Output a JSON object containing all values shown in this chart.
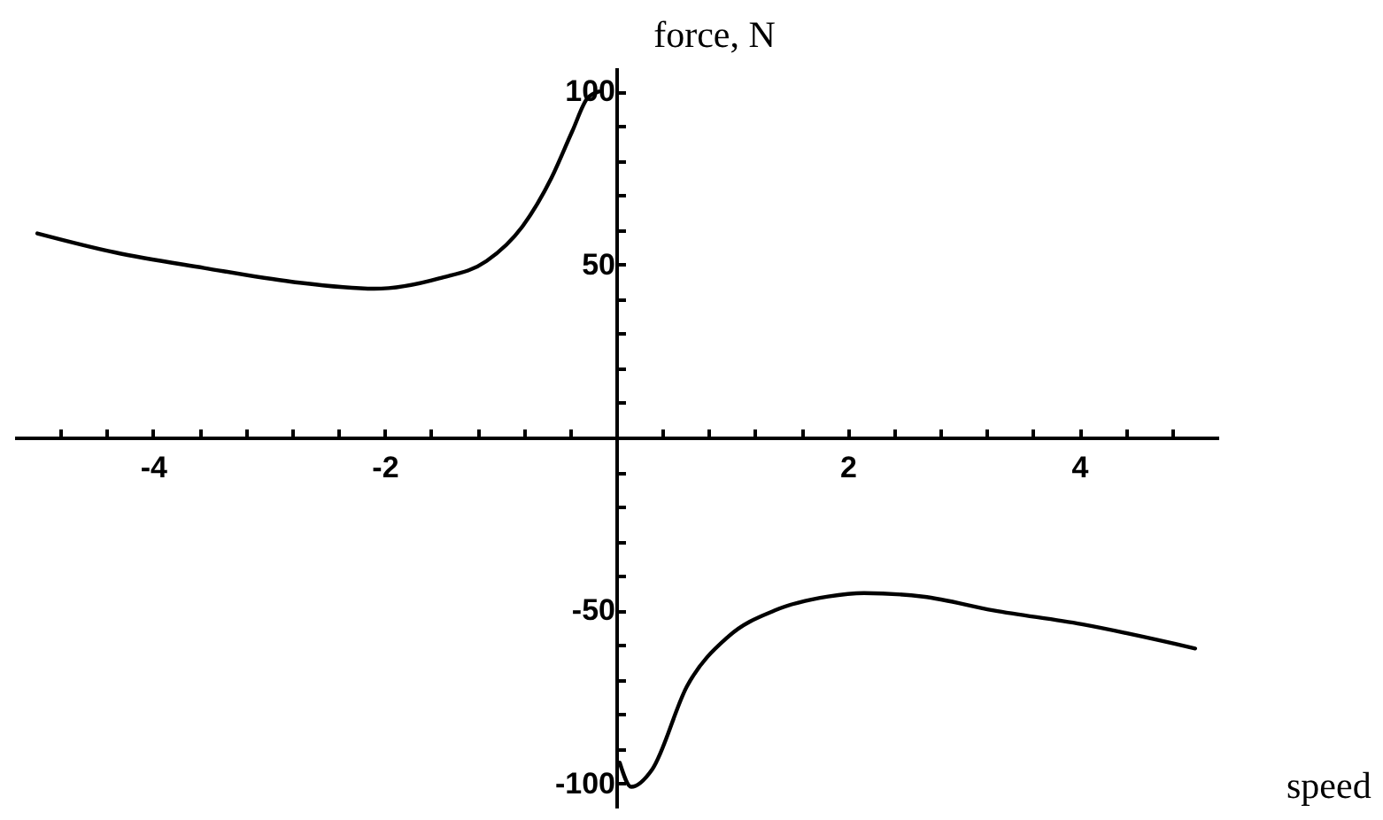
{
  "chart_data": {
    "type": "line",
    "title": "force,   N",
    "xlabel": "speed",
    "xlim": [
      -5.2,
      5.2
    ],
    "ylim": [
      -107,
      107
    ],
    "xticks": [
      {
        "value": -4.8,
        "label": null
      },
      {
        "value": -4.4,
        "label": null
      },
      -4,
      {
        "value": -3.6,
        "label": null
      },
      {
        "value": -3.2,
        "label": null
      },
      {
        "value": -2.8,
        "label": null
      },
      {
        "value": -2.4,
        "label": null
      },
      -2,
      {
        "value": -1.6,
        "label": null
      },
      {
        "value": -1.2,
        "label": null
      },
      {
        "value": -0.8,
        "label": null
      },
      {
        "value": -0.4,
        "label": null
      },
      {
        "value": 0.4,
        "label": null
      },
      {
        "value": 0.8,
        "label": null
      },
      {
        "value": 1.2,
        "label": null
      },
      {
        "value": 1.6,
        "label": null
      },
      2,
      {
        "value": 2.4,
        "label": null
      },
      {
        "value": 2.8,
        "label": null
      },
      {
        "value": 3.2,
        "label": null
      },
      {
        "value": 3.6,
        "label": null
      },
      4,
      {
        "value": 4.4,
        "label": null
      },
      {
        "value": 4.8,
        "label": null
      }
    ],
    "yticks": [
      -100,
      {
        "value": -90,
        "label": null
      },
      {
        "value": -80,
        "label": null
      },
      {
        "value": -70,
        "label": null
      },
      {
        "value": -60,
        "label": null
      },
      -50,
      {
        "value": -40,
        "label": null
      },
      {
        "value": -30,
        "label": null
      },
      {
        "value": -20,
        "label": null
      },
      {
        "value": -10,
        "label": null
      },
      {
        "value": 10,
        "label": null
      },
      {
        "value": 20,
        "label": null
      },
      {
        "value": 30,
        "label": null
      },
      {
        "value": 40,
        "label": null
      },
      50,
      {
        "value": 60,
        "label": null
      },
      {
        "value": 70,
        "label": null
      },
      {
        "value": 80,
        "label": null
      },
      {
        "value": 90,
        "label": null
      },
      100
    ],
    "series": [
      {
        "color": "#000000",
        "x": [
          -5,
          -4.33,
          -3.56,
          -2.8,
          -2.09,
          -1.53,
          -1.12,
          -0.81,
          -0.56,
          -0.38,
          -0.25,
          -0.15
        ],
        "values": [
          59,
          53.5,
          49,
          45,
          43,
          46,
          51,
          61,
          75,
          88.5,
          98,
          100
        ]
      },
      {
        "color": "#000000",
        "x": [
          0.03,
          0.13,
          0.31,
          0.61,
          0.97,
          1.37,
          1.83,
          2.14,
          2.65,
          3.26,
          4.02,
          5
        ],
        "values": [
          -94,
          -101,
          -96,
          -72,
          -57.5,
          -50,
          -46,
          -45,
          -46,
          -50,
          -54,
          -61
        ]
      }
    ]
  }
}
